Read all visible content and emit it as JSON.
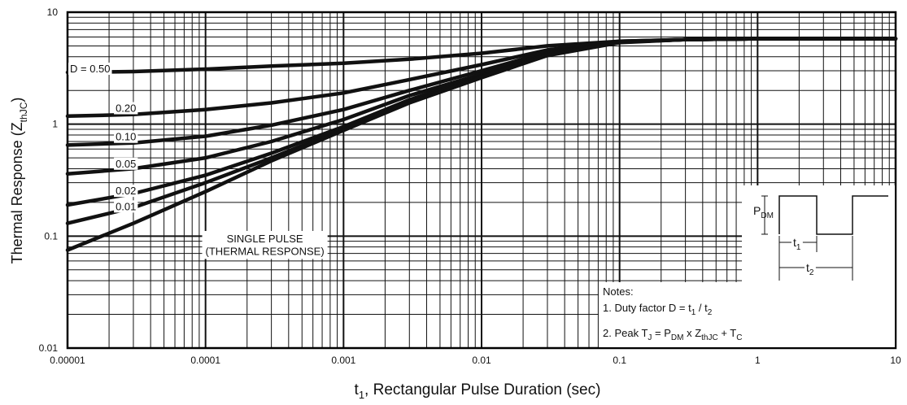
{
  "chart_data": {
    "type": "line",
    "xscale": "log",
    "yscale": "log",
    "xlim": [
      1e-05,
      10
    ],
    "ylim": [
      0.01,
      10
    ],
    "grid": true,
    "xlabel": "t",
    "xlabel_sub": "1",
    "xlabel_rest": ", Rectangular Pulse Duration (sec)",
    "ylabel": "Thermal Response (Z",
    "ylabel_sub": "thJC",
    "ylabel_close": ")",
    "x_ticks": [
      {
        "value": 1e-05,
        "label": "0.00001"
      },
      {
        "value": 0.0001,
        "label": "0.0001"
      },
      {
        "value": 0.001,
        "label": "0.001"
      },
      {
        "value": 0.01,
        "label": "0.01"
      },
      {
        "value": 0.1,
        "label": "0.1"
      },
      {
        "value": 1,
        "label": "1"
      },
      {
        "value": 10,
        "label": "10"
      }
    ],
    "y_ticks": [
      {
        "value": 0.01,
        "label": "0.01"
      },
      {
        "value": 0.1,
        "label": "0.1"
      },
      {
        "value": 1,
        "label": "1"
      },
      {
        "value": 10,
        "label": "10"
      }
    ],
    "series": [
      {
        "name": "D = 0.50",
        "label_at": 1e-05,
        "x": [
          1e-05,
          3e-05,
          0.0001,
          0.0003,
          0.001,
          0.003,
          0.01,
          0.03,
          0.1,
          0.3,
          1,
          10
        ],
        "y": [
          2.9,
          2.95,
          3.1,
          3.3,
          3.5,
          3.8,
          4.3,
          5.0,
          5.5,
          5.7,
          5.8,
          5.8
        ]
      },
      {
        "name": "0.20",
        "label_at": 2e-05,
        "x": [
          1e-05,
          3e-05,
          0.0001,
          0.0003,
          0.001,
          0.003,
          0.01,
          0.03,
          0.1,
          0.3,
          1,
          10
        ],
        "y": [
          1.18,
          1.22,
          1.35,
          1.55,
          1.9,
          2.5,
          3.4,
          4.6,
          5.5,
          5.7,
          5.8,
          5.8
        ]
      },
      {
        "name": "0.10",
        "label_at": 2e-05,
        "x": [
          1e-05,
          3e-05,
          0.0001,
          0.0003,
          0.001,
          0.003,
          0.01,
          0.03,
          0.1,
          0.3,
          1,
          10
        ],
        "y": [
          0.65,
          0.68,
          0.78,
          0.98,
          1.35,
          2.0,
          3.0,
          4.4,
          5.4,
          5.7,
          5.8,
          5.8
        ]
      },
      {
        "name": "0.05",
        "label_at": 2e-05,
        "x": [
          1e-05,
          3e-05,
          0.0001,
          0.0003,
          0.001,
          0.003,
          0.01,
          0.03,
          0.1,
          0.3,
          1,
          10
        ],
        "y": [
          0.36,
          0.4,
          0.5,
          0.7,
          1.1,
          1.8,
          2.8,
          4.3,
          5.4,
          5.7,
          5.8,
          5.8
        ]
      },
      {
        "name": "0.02",
        "label_at": 2e-05,
        "x": [
          1e-05,
          3e-05,
          0.0001,
          0.0003,
          0.001,
          0.003,
          0.01,
          0.03,
          0.1,
          0.3,
          1,
          10
        ],
        "y": [
          0.19,
          0.24,
          0.35,
          0.55,
          0.95,
          1.65,
          2.7,
          4.2,
          5.4,
          5.7,
          5.8,
          5.8
        ]
      },
      {
        "name": "0.01",
        "label_at": 2e-05,
        "x": [
          1e-05,
          3e-05,
          0.0001,
          0.0003,
          0.001,
          0.003,
          0.01,
          0.03,
          0.1,
          0.3,
          1,
          10
        ],
        "y": [
          0.13,
          0.18,
          0.3,
          0.5,
          0.9,
          1.6,
          2.65,
          4.2,
          5.4,
          5.7,
          5.8,
          5.8
        ]
      },
      {
        "name": "SINGLE PULSE",
        "label_line2": "(THERMAL RESPONSE)",
        "x": [
          1e-05,
          3e-05,
          0.0001,
          0.0003,
          0.001,
          0.003,
          0.01,
          0.03,
          0.1,
          0.3,
          1,
          10
        ],
        "y": [
          0.075,
          0.13,
          0.25,
          0.47,
          0.88,
          1.55,
          2.6,
          4.1,
          5.35,
          5.7,
          5.8,
          5.8
        ]
      }
    ],
    "annotations": {
      "notes_title": "Notes:",
      "note1_prefix": "1. Duty factor D =  t",
      "note1_sub1": "1",
      "note1_mid": " / t",
      "note1_sub2": "2",
      "note2_a": "2. Peak T",
      "note2_a_sub": "J",
      "note2_b": " = P",
      "note2_b_sub": "DM",
      "note2_c": " x Z",
      "note2_c_sub": "thJC",
      "note2_d": " + T",
      "note2_d_sub": "C",
      "pulse_p": "P",
      "pulse_p_sub": "DM",
      "pulse_t1": "t",
      "pulse_t1_sub": "1",
      "pulse_t2": "t",
      "pulse_t2_sub": "2"
    }
  }
}
